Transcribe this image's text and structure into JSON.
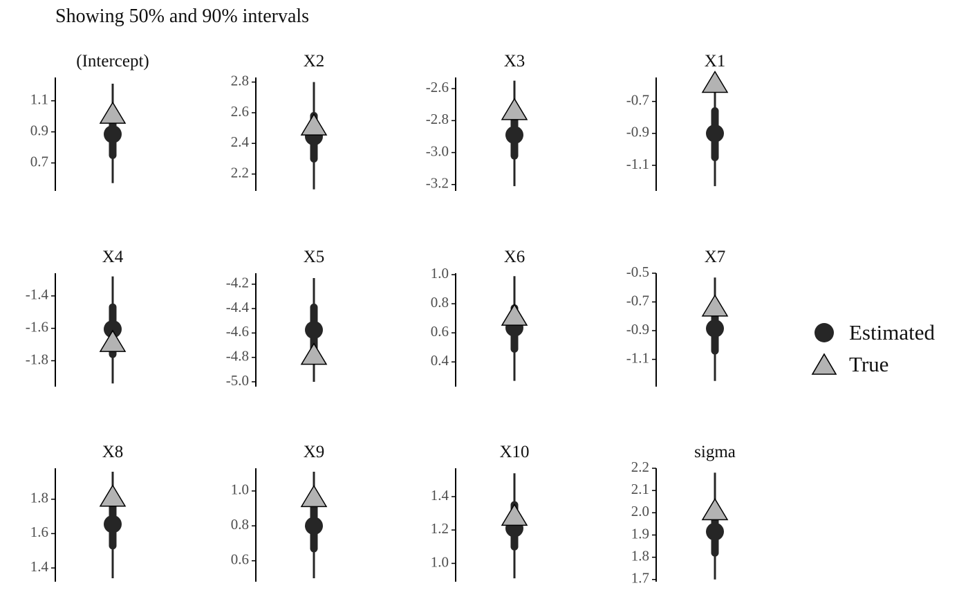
{
  "subtitle": "Showing 50% and 90% intervals",
  "colors": {
    "estimated": "#262626",
    "true_fill": "#b3b3b3",
    "true_stroke": "#000000",
    "axis": "#000000",
    "tick_text": "#4d4d4d",
    "title_text": "#111111"
  },
  "legend": {
    "items": [
      {
        "label": "Estimated",
        "shape": "circle"
      },
      {
        "label": "True",
        "shape": "triangle"
      }
    ]
  },
  "chart_data": {
    "type": "scatter",
    "layout": "facet grid of parameter intervals (interval plot per parameter)",
    "subtitle": "Showing 50% and 90% intervals",
    "xlabel": "",
    "ylabel": "",
    "grid": false,
    "legend_position": "right",
    "series": [
      {
        "name": "Estimated"
      },
      {
        "name": "True"
      }
    ],
    "panels": [
      {
        "name": "(Intercept)",
        "ylim": [
          0.52,
          1.25
        ],
        "ticks": [
          "0.7",
          "0.9",
          "1.1"
        ],
        "estimate": 0.885,
        "ci50": [
          0.75,
          1.02
        ],
        "ci90": [
          0.57,
          1.21
        ],
        "true": 1.0
      },
      {
        "name": "X2",
        "ylim": [
          2.09,
          2.83
        ],
        "ticks": [
          "2.2",
          "2.4",
          "2.6",
          "2.8"
        ],
        "estimate": 2.445,
        "ci50": [
          2.3,
          2.58
        ],
        "ci90": [
          2.1,
          2.8
        ],
        "true": 2.5
      },
      {
        "name": "X3",
        "ylim": [
          -3.24,
          -2.53
        ],
        "ticks": [
          "-3.2",
          "-3.0",
          "-2.8",
          "-2.6"
        ],
        "estimate": -2.89,
        "ci50": [
          -3.02,
          -2.76
        ],
        "ci90": [
          -3.21,
          -2.55
        ],
        "true": -2.75
      },
      {
        "name": "X1",
        "ylim": [
          -1.26,
          -0.55
        ],
        "ticks": [
          "-1.1",
          "-0.9",
          "-0.7"
        ],
        "estimate": -0.9,
        "ci50": [
          -1.05,
          -0.76
        ],
        "ci90": [
          -1.23,
          -0.58
        ],
        "true": -0.6
      },
      {
        "name": "X4",
        "ylim": [
          -1.96,
          -1.26
        ],
        "ticks": [
          "-1.8",
          "-1.6",
          "-1.4"
        ],
        "estimate": -1.605,
        "ci50": [
          -1.76,
          -1.47
        ],
        "ci90": [
          -1.94,
          -1.28
        ],
        "true": -1.7
      },
      {
        "name": "X5",
        "ylim": [
          -5.04,
          -4.11
        ],
        "ticks": [
          "-5.0",
          "-4.8",
          "-4.6",
          "-4.4",
          "-4.2"
        ],
        "estimate": -4.575,
        "ci50": [
          -4.75,
          -4.39
        ],
        "ci90": [
          -5.0,
          -4.15
        ],
        "true": -4.8
      },
      {
        "name": "X6",
        "ylim": [
          0.23,
          1.01
        ],
        "ticks": [
          "0.4",
          "0.6",
          "0.8",
          "1.0"
        ],
        "estimate": 0.635,
        "ci50": [
          0.49,
          0.77
        ],
        "ci90": [
          0.27,
          0.99
        ],
        "true": 0.7
      },
      {
        "name": "X7",
        "ylim": [
          -1.29,
          -0.5
        ],
        "ticks": [
          "-1.1",
          "-0.9",
          "-0.7",
          "-0.5"
        ],
        "estimate": -0.885,
        "ci50": [
          -1.04,
          -0.73
        ],
        "ci90": [
          -1.25,
          -0.53
        ],
        "true": -0.75
      },
      {
        "name": "X8",
        "ylim": [
          1.32,
          1.98
        ],
        "ticks": [
          "1.4",
          "1.6",
          "1.8"
        ],
        "estimate": 1.655,
        "ci50": [
          1.53,
          1.79
        ],
        "ci90": [
          1.34,
          1.96
        ],
        "true": 1.8
      },
      {
        "name": "X9",
        "ylim": [
          0.48,
          1.13
        ],
        "ticks": [
          "0.6",
          "0.8",
          "1.0"
        ],
        "estimate": 0.8,
        "ci50": [
          0.67,
          0.93
        ],
        "ci90": [
          0.5,
          1.11
        ],
        "true": 0.95
      },
      {
        "name": "X10",
        "ylim": [
          0.89,
          1.57
        ],
        "ticks": [
          "1.0",
          "1.2",
          "1.4"
        ],
        "estimate": 1.21,
        "ci50": [
          1.1,
          1.35
        ],
        "ci90": [
          0.91,
          1.54
        ],
        "true": 1.27
      },
      {
        "name": "sigma",
        "ylim": [
          1.69,
          2.2
        ],
        "ticks": [
          "1.7",
          "1.8",
          "1.9",
          "2.0",
          "2.1",
          "2.2"
        ],
        "estimate": 1.915,
        "ci50": [
          1.82,
          2.0
        ],
        "ci90": [
          1.7,
          2.18
        ],
        "true": 2.0
      }
    ]
  }
}
